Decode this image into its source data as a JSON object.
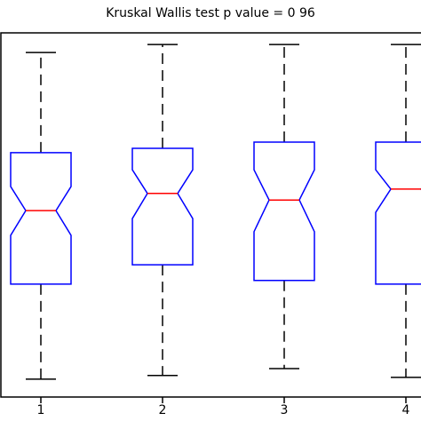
{
  "chart_data": {
    "type": "box",
    "title": "Kruskal Wallis test p value = 0 96",
    "categories": [
      "1",
      "2",
      "3",
      "4"
    ],
    "whisker_high": [
      94.6,
      96.8,
      96.8,
      96.8
    ],
    "q3": [
      67.1,
      68.3,
      70.0,
      70.0
    ],
    "notch_high": [
      57.8,
      62.4,
      62.4,
      62.4
    ],
    "median": [
      51.2,
      55.9,
      54.1,
      57.1
    ],
    "notch_low": [
      44.4,
      49.0,
      45.4,
      50.7
    ],
    "q1": [
      31.0,
      36.3,
      32.0,
      31.0
    ],
    "whisker_low": [
      4.9,
      5.9,
      7.8,
      5.4
    ],
    "ylim": [
      0,
      100
    ],
    "box_color": "#0000ff",
    "median_color": "#ff0000",
    "whisker_color": "#000000"
  }
}
